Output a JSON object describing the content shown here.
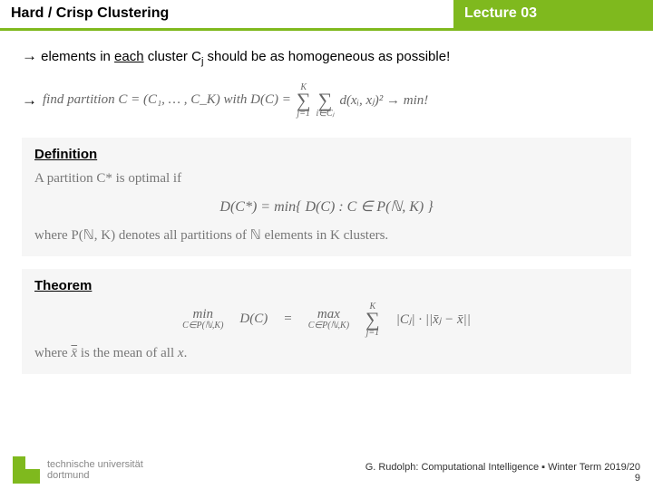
{
  "header": {
    "left": "Hard / Crisp Clustering",
    "right": "Lecture 03"
  },
  "line1": {
    "arrow": "→",
    "t1": " elements in ",
    "u": "each",
    "t2": " cluster C",
    "sub": "j",
    "t3": " should be as homogeneous as possible!"
  },
  "line2": {
    "arrow": "→",
    "text": "find partition C = (C₁, … , C_K) with D(C) =",
    "sumTop": "K",
    "sumBot": "j=1",
    "sum2Bot": "i∈Cⱼ",
    "tail": "d(xᵢ, xⱼ)² → min!"
  },
  "def": {
    "title": "Definition",
    "l1": "A partition C* is optimal if",
    "formula": "D(C*) = min{ D(C)  :  C ∈ P(ℕ, K) }",
    "l2": "where P(ℕ, K) denotes all partitions of ℕ elements in K clusters."
  },
  "thm": {
    "title": "Theorem",
    "minTop": "min",
    "minBot": "C∈P(ℕ,K)",
    "dc": "D(C)",
    "eq": "=",
    "maxTop": "max",
    "maxBot": "C∈P(ℕ,K)",
    "sumTop": "K",
    "sumBot": "j=1",
    "body": "|Cⱼ| · ||x̄ⱼ − x̄||",
    "l2a": "where ",
    "l2b": "x̄",
    "l2c": " is the mean of all ",
    "l2d": "x",
    "l2e": "."
  },
  "footer": {
    "l1": "G. Rudolph: Computational Intelligence ▪ Winter Term 2019/20",
    "l2": "9"
  },
  "logo": {
    "l1": "technische universität",
    "l2": "dortmund"
  }
}
